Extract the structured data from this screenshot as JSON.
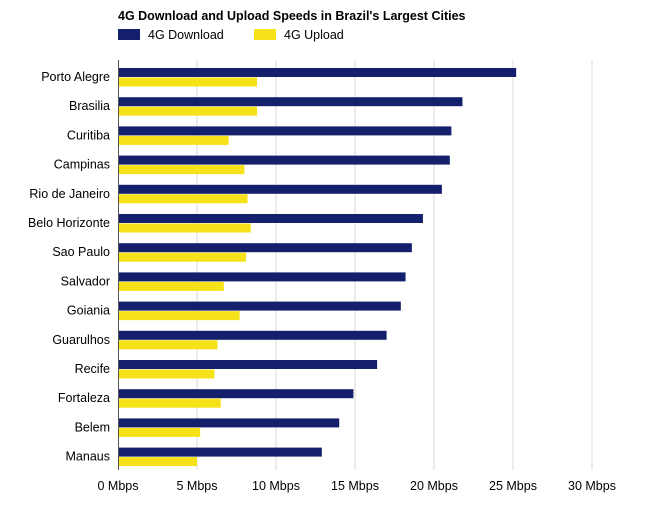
{
  "chart_data": {
    "type": "bar",
    "orientation": "horizontal",
    "title": "4G Download and Upload Speeds in Brazil's Largest Cities",
    "legend_position": "top-left",
    "grid": true,
    "xlim": [
      0,
      30
    ],
    "x_ticks": [
      {
        "value": 0,
        "label": "0 Mbps"
      },
      {
        "value": 5,
        "label": "5 Mbps"
      },
      {
        "value": 10,
        "label": "10 Mbps"
      },
      {
        "value": 15,
        "label": "15 Mbps"
      },
      {
        "value": 20,
        "label": "20 Mbps"
      },
      {
        "value": 25,
        "label": "25 Mbps"
      },
      {
        "value": 30,
        "label": "30 Mbps"
      }
    ],
    "categories": [
      "Porto Alegre",
      "Brasilia",
      "Curitiba",
      "Campinas",
      "Rio de Janeiro",
      "Belo Horizonte",
      "Sao Paulo",
      "Salvador",
      "Goiania",
      "Guarulhos",
      "Recife",
      "Fortaleza",
      "Belem",
      "Manaus"
    ],
    "series": [
      {
        "name": "4G Download",
        "color": "#14206b",
        "values": [
          25.2,
          21.8,
          21.1,
          21.0,
          20.5,
          19.3,
          18.6,
          18.2,
          17.9,
          17.0,
          16.4,
          14.9,
          14.0,
          12.9
        ]
      },
      {
        "name": "4G Upload",
        "color": "#f5e219",
        "values": [
          8.8,
          8.8,
          7.0,
          8.0,
          8.2,
          8.4,
          8.1,
          6.7,
          7.7,
          6.3,
          6.1,
          6.5,
          5.2,
          5.0
        ]
      }
    ]
  }
}
